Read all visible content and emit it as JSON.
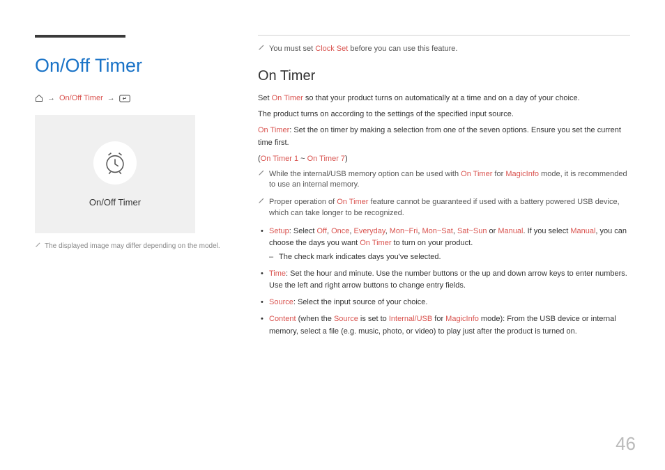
{
  "colors": {
    "primary_blue": "#1a73c7",
    "accent_red": "#d9534f",
    "text": "#333333",
    "muted": "#888888",
    "tile_bg": "#f0f0f0",
    "page_num": "#bbbbbb",
    "top_bar": "#3a3a3a"
  },
  "page_number": "46",
  "left": {
    "title": "On/Off Timer",
    "breadcrumb": {
      "item": "On/Off Timer",
      "arrow": "→"
    },
    "tile_label": "On/Off Timer",
    "caption": "The displayed image may differ depending on the model."
  },
  "right": {
    "top_note_pre": "You must set ",
    "top_note_accent": "Clock Set",
    "top_note_post": " before you can use this feature.",
    "subtitle": "On Timer",
    "para1_pre": "Set ",
    "para1_accent": "On Timer",
    "para1_post": " so that your product turns on automatically at a time and on a day of your choice.",
    "para2": "The product turns on according to the settings of the specified input source.",
    "para3_accent": "On Timer",
    "para3_post": ": Set the on timer by making a selection from one of the seven options. Ensure you set the current time first.",
    "para4_open": "(",
    "para4_a": "On Timer 1",
    "para4_sep": " ~ ",
    "para4_b": "On Timer 7",
    "para4_close": ")",
    "note1_pre": "While the internal/USB memory option can be used with ",
    "note1_a": "On Timer",
    "note1_mid": " for ",
    "note1_b": "MagicInfo",
    "note1_post": " mode, it is recommended to use an internal memory.",
    "note2_pre": "Proper operation of ",
    "note2_a": "On Timer",
    "note2_post": " feature cannot be guaranteed if used with a battery powered USB device, which can take longer to be recognized.",
    "bullets": {
      "setup": {
        "label": "Setup",
        "pre": ": Select ",
        "opts": [
          "Off",
          "Once",
          "Everyday",
          "Mon~Fri",
          "Mon~Sat",
          "Sat~Sun",
          "Manual"
        ],
        "sep": ", ",
        "or": " or ",
        "post1": ". If you select ",
        "manual": "Manual",
        "post2": ", you can choose the days you want ",
        "ontimer": "On Timer",
        "post3": " to turn on your product.",
        "sub": "The check mark indicates days you've selected."
      },
      "time": {
        "label": "Time",
        "text": ": Set the hour and minute. Use the number buttons or the up and down arrow keys to enter numbers. Use the left and right arrow buttons to change entry fields."
      },
      "source": {
        "label": "Source",
        "text": ": Select the input source of your choice."
      },
      "content": {
        "label": "Content",
        "pre": " (when the ",
        "src": "Source",
        "mid": " is set to ",
        "iu": "Internal/USB",
        "for": " for ",
        "mi": "MagicInfo",
        "post": " mode): From the USB device or internal memory, select a file (e.g. music, photo, or video) to play just after the product is turned on."
      }
    }
  }
}
